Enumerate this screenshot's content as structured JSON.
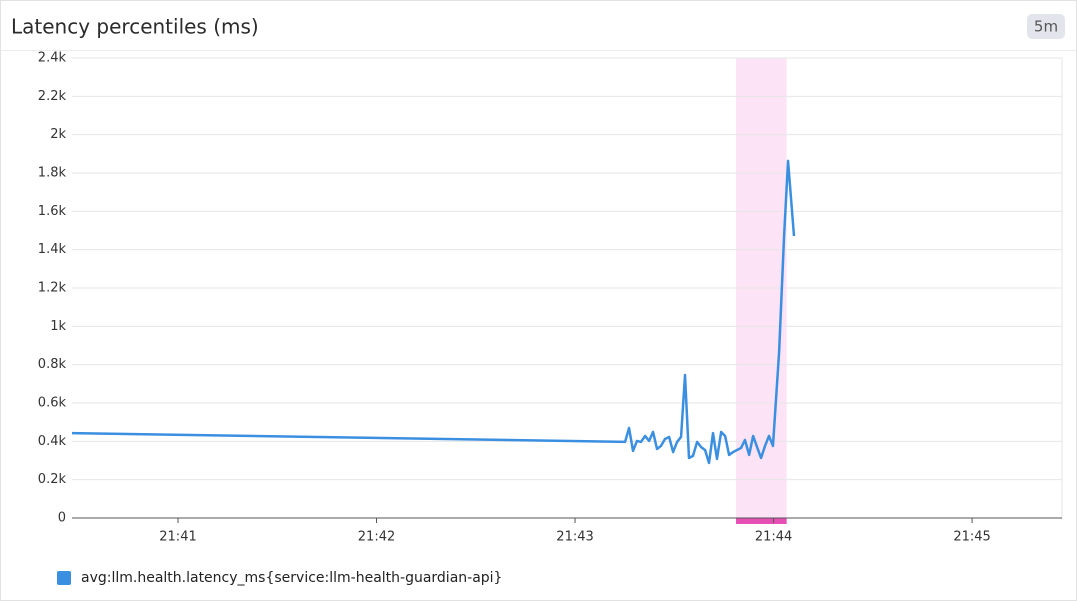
{
  "chart_data": {
    "type": "line",
    "title": "Latency percentiles (ms)",
    "badge": "5m",
    "x": [
      40.466,
      43.252,
      43.272,
      43.292,
      43.312,
      43.332,
      43.353,
      43.373,
      43.393,
      43.413,
      43.433,
      43.453,
      43.474,
      43.494,
      43.514,
      43.534,
      43.554,
      43.574,
      43.594,
      43.615,
      43.635,
      43.655,
      43.675,
      43.695,
      43.715,
      43.736,
      43.756,
      43.776,
      43.796,
      43.816,
      43.836,
      43.856,
      43.877,
      43.897,
      43.917,
      43.937,
      43.957,
      43.977,
      43.997,
      44.028,
      44.053,
      44.073,
      44.103
    ],
    "series": [
      {
        "name": "avg:llm.health.latency_ms{service:llm-health-guardian-api}",
        "color": "#3b8fe0",
        "values": [
          443,
          397,
          470,
          350,
          402,
          397,
          428,
          402,
          449,
          360,
          376,
          412,
          423,
          344,
          397,
          423,
          746,
          313,
          324,
          397,
          370,
          355,
          287,
          443,
          308,
          449,
          428,
          329,
          344,
          355,
          365,
          407,
          329,
          428,
          370,
          313,
          376,
          428,
          376,
          866,
          1471,
          1863,
          1471
        ]
      }
    ],
    "xlim": [
      40.466,
      45.453
    ],
    "xticks": [
      {
        "value": 41,
        "label": "21:41"
      },
      {
        "value": 42,
        "label": "21:42"
      },
      {
        "value": 43,
        "label": "21:43"
      },
      {
        "value": 44,
        "label": "21:44"
      },
      {
        "value": 45,
        "label": "21:45"
      }
    ],
    "ylim": [
      0,
      2400
    ],
    "yticks": [
      0,
      {
        "value": 200,
        "label": "0.2k"
      },
      {
        "value": 400,
        "label": "0.4k"
      },
      {
        "value": 600,
        "label": "0.6k"
      },
      {
        "value": 800,
        "label": "0.8k"
      },
      {
        "value": 1000,
        "label": "1k"
      },
      {
        "value": 1200,
        "label": "1.2k"
      },
      {
        "value": 1400,
        "label": "1.4k"
      },
      {
        "value": 1600,
        "label": "1.6k"
      },
      {
        "value": 1800,
        "label": "1.8k"
      },
      {
        "value": 2000,
        "label": "2k"
      },
      {
        "value": 2200,
        "label": "2.2k"
      },
      {
        "value": 2400,
        "label": "2.4k"
      }
    ],
    "grid": true,
    "highlight": {
      "xlim": [
        43.811,
        44.066
      ],
      "color": "#fce4f6",
      "edge_color": "#e84fb4"
    }
  }
}
